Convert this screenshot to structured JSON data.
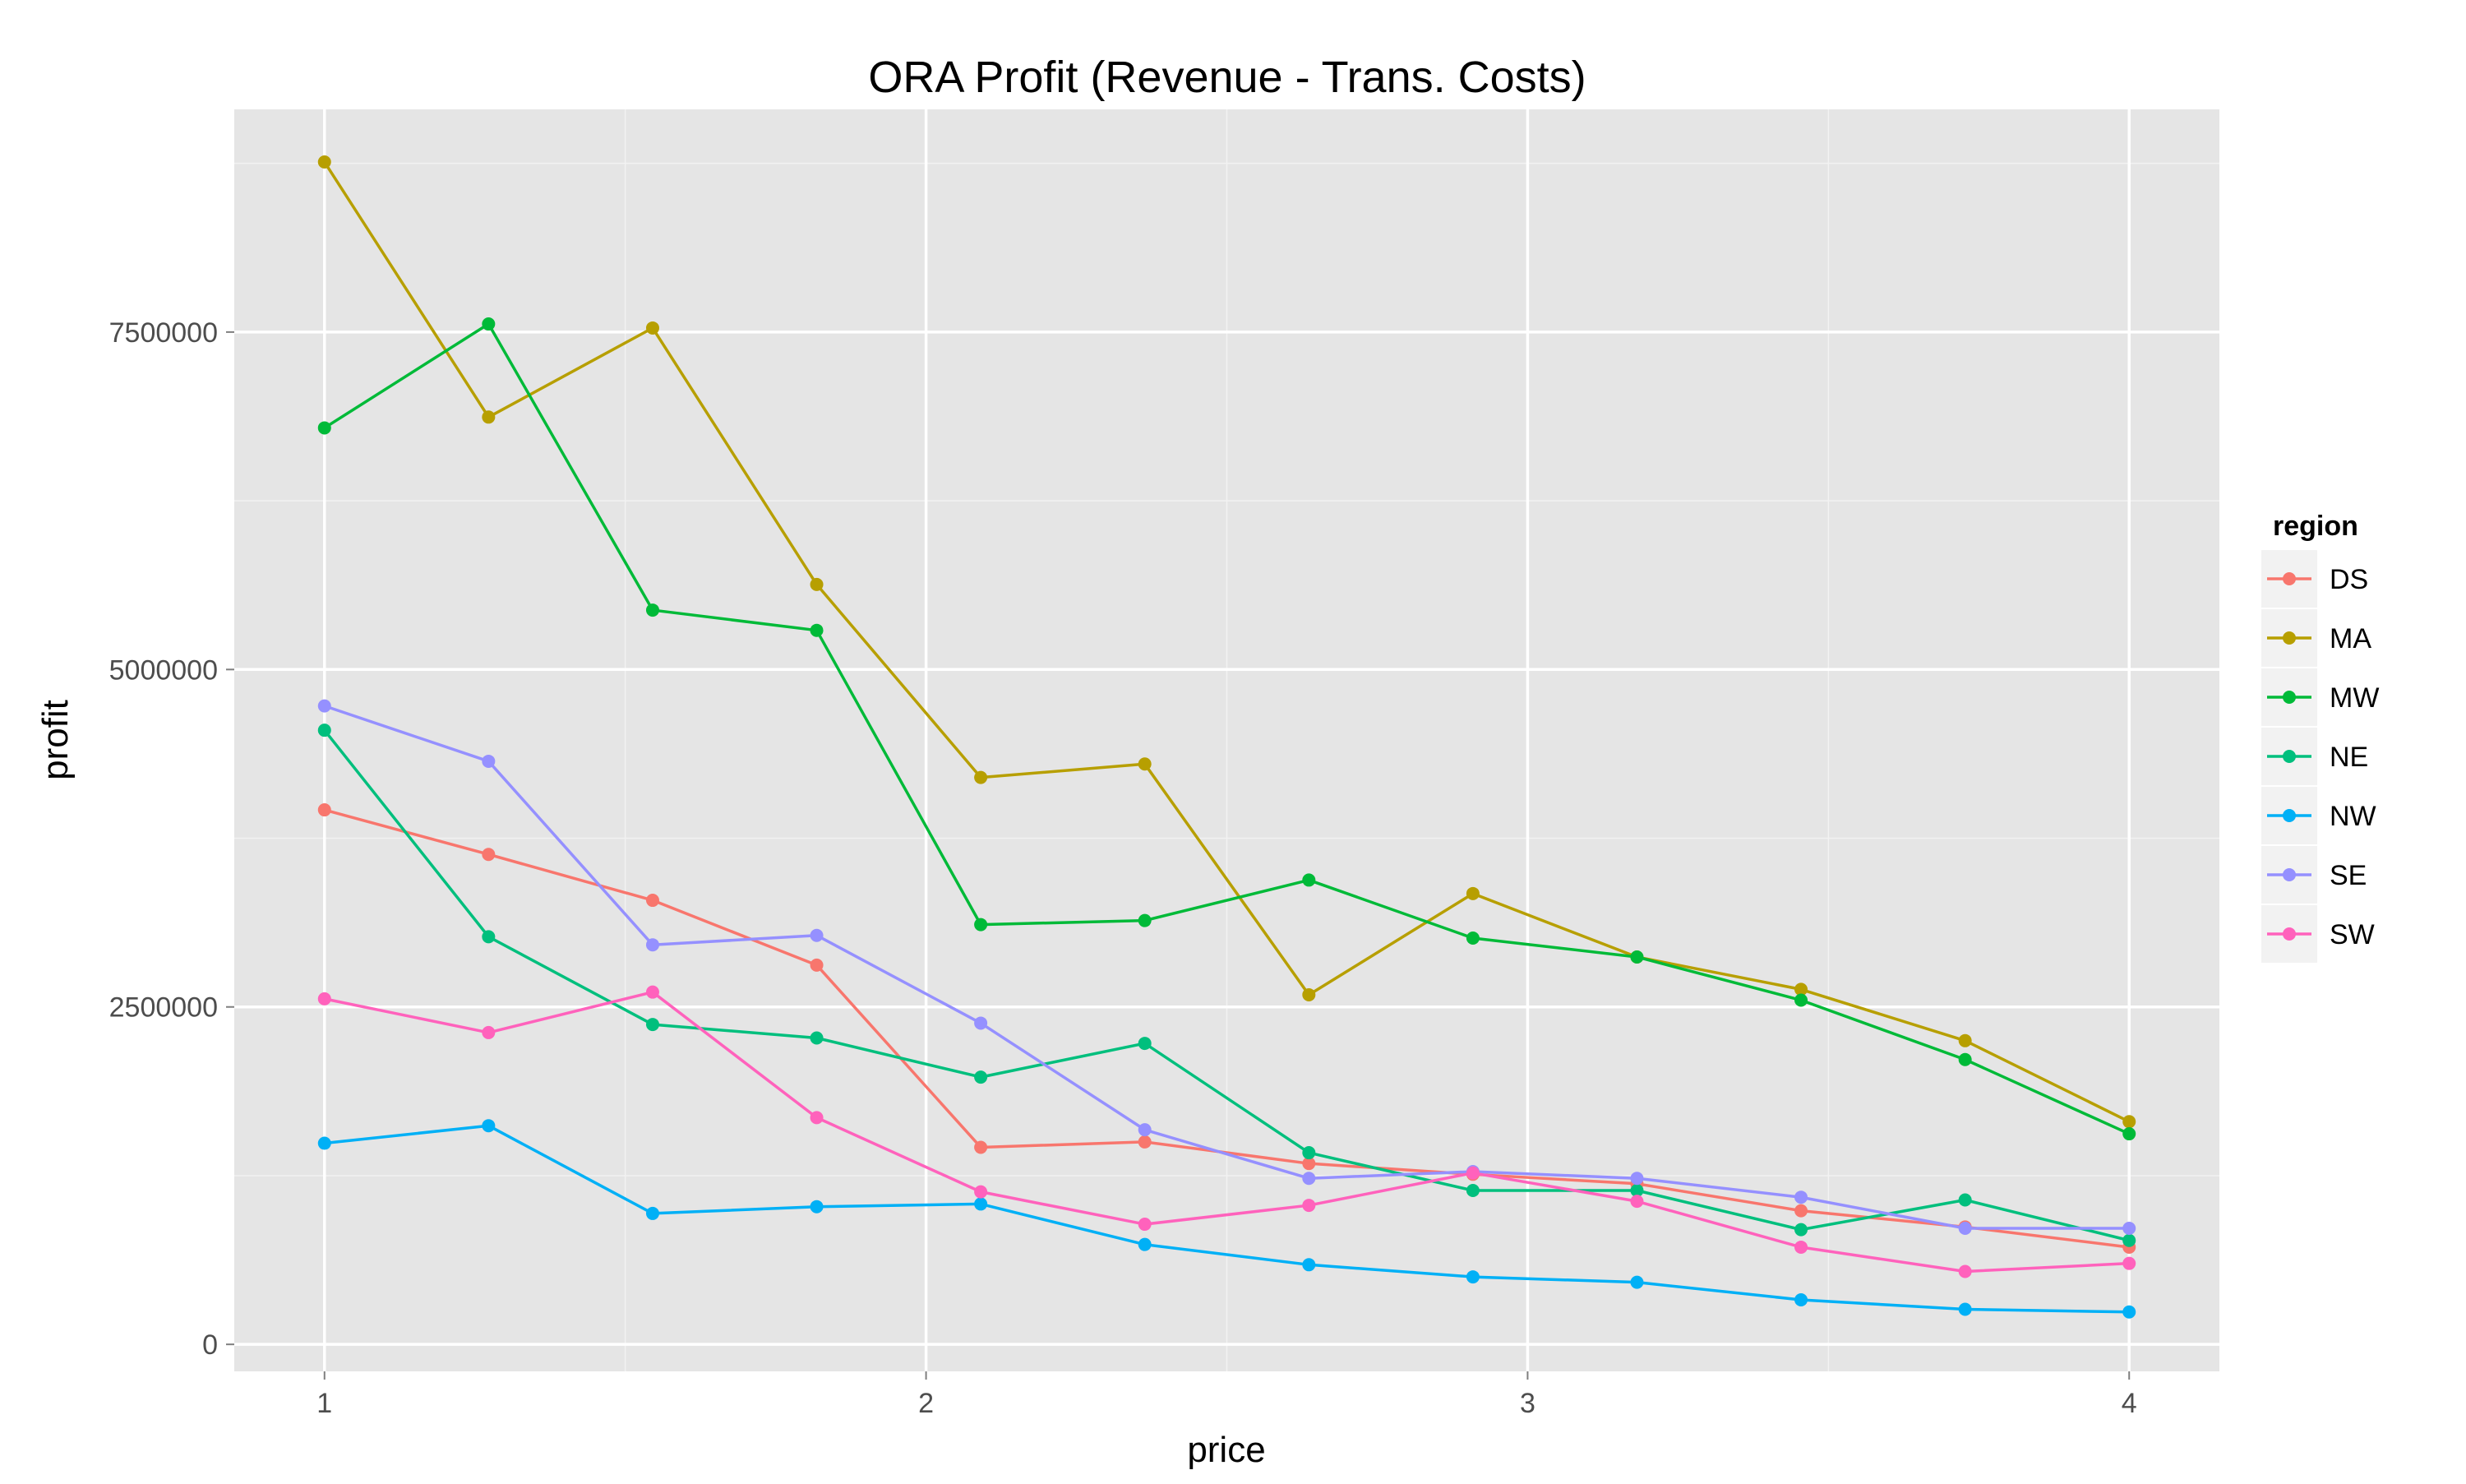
{
  "chart_data": {
    "type": "line",
    "title": "ORA Profit (Revenue - Trans. Costs)",
    "xlabel": "price",
    "ylabel": "profit",
    "xlim": [
      0.85,
      4.15
    ],
    "ylim": [
      -200000,
      9150000
    ],
    "x_ticks": [
      1,
      2,
      3,
      4
    ],
    "x_tick_labels": [
      "1",
      "2",
      "3",
      "4"
    ],
    "x_minor_ticks": [
      1.5,
      2.5,
      3.5
    ],
    "y_ticks": [
      0,
      2500000,
      5000000,
      7500000
    ],
    "y_tick_labels": [
      "0",
      "2500000",
      "5000000",
      "7500000"
    ],
    "y_minor_ticks": [
      1250000,
      3750000,
      6250000,
      8750000
    ],
    "grid": true,
    "legend_title": "region",
    "legend_position": "right",
    "x": [
      1.0,
      1.2727,
      1.5455,
      1.8182,
      2.0909,
      2.3636,
      2.6364,
      2.9091,
      3.1818,
      3.4545,
      3.7273,
      4.0
    ],
    "series": [
      {
        "name": "DS",
        "color": "#F8766D",
        "values": [
          3960000,
          3630000,
          3290000,
          2810000,
          1460000,
          1500000,
          1340000,
          1260000,
          1190000,
          990000,
          870000,
          720000
        ]
      },
      {
        "name": "MA",
        "color": "#B79F00",
        "values": [
          8760000,
          6870000,
          7530000,
          5630000,
          4200000,
          4300000,
          2590000,
          3340000,
          2870000,
          2630000,
          2250000,
          1650000
        ]
      },
      {
        "name": "MW",
        "color": "#00BA38",
        "values": [
          6790000,
          7560000,
          5440000,
          5290000,
          3110000,
          3140000,
          3440000,
          3010000,
          2870000,
          2550000,
          2110000,
          1560000
        ]
      },
      {
        "name": "NE",
        "color": "#00BF7D",
        "values": [
          4550000,
          3020000,
          2370000,
          2270000,
          1980000,
          2230000,
          1420000,
          1140000,
          1140000,
          850000,
          1070000,
          770000
        ]
      },
      {
        "name": "NW",
        "color": "#00B0F6",
        "values": [
          1490000,
          1620000,
          970000,
          1020000,
          1040000,
          740000,
          590000,
          500000,
          460000,
          330000,
          260000,
          240000
        ]
      },
      {
        "name": "SE",
        "color": "#9590FF",
        "values": [
          4730000,
          4320000,
          2960000,
          3030000,
          2380000,
          1590000,
          1230000,
          1280000,
          1230000,
          1090000,
          860000,
          860000
        ]
      },
      {
        "name": "SW",
        "color": "#FF62BC",
        "values": [
          2560000,
          2310000,
          2610000,
          1680000,
          1130000,
          890000,
          1030000,
          1270000,
          1060000,
          720000,
          540000,
          600000
        ]
      }
    ]
  }
}
